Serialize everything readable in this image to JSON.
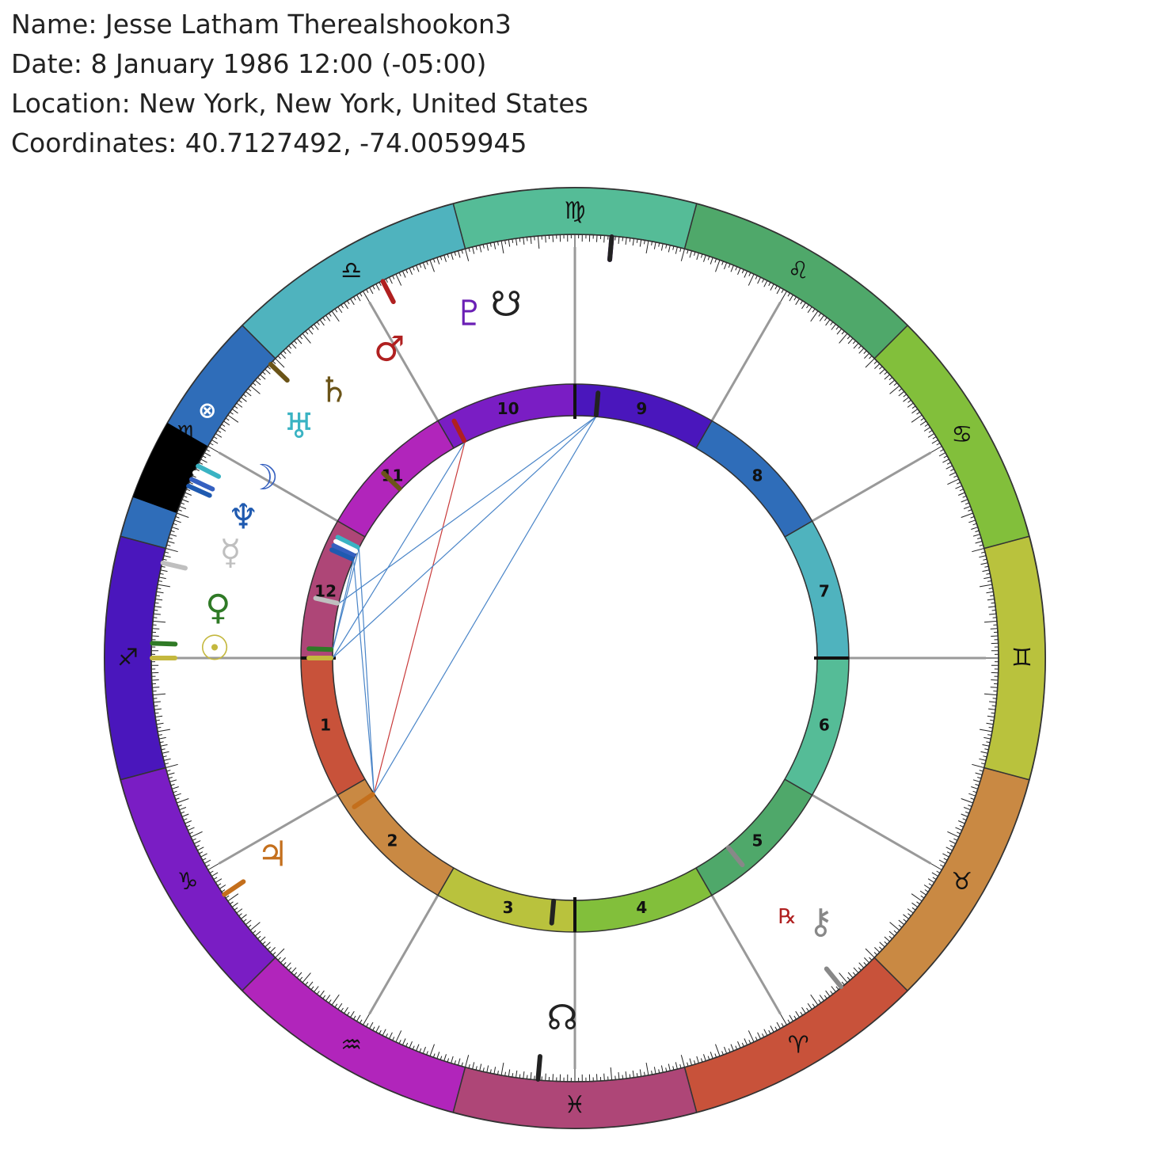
{
  "header": {
    "name": "Name: Jesse Latham Therealshookon3",
    "date": "Date: 8 January 1986 12:00 (-05:00)",
    "location": "Location: New York, New York, United States",
    "coordinates": "Coordinates: 40.7127492, -74.0059945"
  },
  "zodiac": {
    "ascendant_longitude": 255.0,
    "signs": [
      {
        "name": "aries",
        "glyph": "♈",
        "start": 0,
        "color": "#c8523a"
      },
      {
        "name": "taurus",
        "glyph": "♉",
        "start": 30,
        "color": "#c98943"
      },
      {
        "name": "gemini",
        "glyph": "♊",
        "start": 60,
        "color": "#b9c23d"
      },
      {
        "name": "cancer",
        "glyph": "♋",
        "start": 90,
        "color": "#82bf3b"
      },
      {
        "name": "leo",
        "glyph": "♌",
        "start": 120,
        "color": "#4fa86a"
      },
      {
        "name": "virgo",
        "glyph": "♍",
        "start": 150,
        "color": "#55bc97"
      },
      {
        "name": "libra",
        "glyph": "♎",
        "start": 180,
        "color": "#4fb3be"
      },
      {
        "name": "scorpio",
        "glyph": "♏",
        "start": 210,
        "color": "#2f6db9"
      },
      {
        "name": "sagittarius",
        "glyph": "♐",
        "start": 240,
        "color": "#4a16bc"
      },
      {
        "name": "capricorn",
        "glyph": "♑",
        "start": 270,
        "color": "#7a1dc4"
      },
      {
        "name": "aquarius",
        "glyph": "♒",
        "start": 300,
        "color": "#b125bb"
      },
      {
        "name": "pisces",
        "glyph": "♓",
        "start": 330,
        "color": "#ae4677"
      }
    ],
    "black_segment": {
      "start": 225,
      "end": 235,
      "color": "#000000"
    }
  },
  "houses": [
    {
      "number": "1",
      "cusp": 255,
      "color": "#c8523a"
    },
    {
      "number": "2",
      "cusp": 285,
      "color": "#c98943"
    },
    {
      "number": "3",
      "cusp": 315,
      "color": "#b9c23d"
    },
    {
      "number": "4",
      "cusp": 345,
      "color": "#82bf3b"
    },
    {
      "number": "5",
      "cusp": 15,
      "color": "#4fa86a"
    },
    {
      "number": "6",
      "cusp": 45,
      "color": "#55bc97"
    },
    {
      "number": "7",
      "cusp": 75,
      "color": "#4fb3be"
    },
    {
      "number": "8",
      "cusp": 105,
      "color": "#2f6db9"
    },
    {
      "number": "9",
      "cusp": 135,
      "color": "#4a16bc"
    },
    {
      "number": "10",
      "cusp": 165,
      "color": "#7a1dc4"
    },
    {
      "number": "11",
      "cusp": 195,
      "color": "#b125bb"
    },
    {
      "number": "12",
      "cusp": 225,
      "color": "#ae4677"
    }
  ],
  "planets": [
    {
      "name": "sun",
      "glyph": "☉",
      "longitude": 255.0,
      "glyph_longitude": 253.5,
      "color": "#c4b83e"
    },
    {
      "name": "moon",
      "glyph": "☽",
      "longitude": 230.0,
      "glyph_longitude": 225.0,
      "color": "#3560c0"
    },
    {
      "name": "mercury",
      "glyph": "☿",
      "longitude": 242.0,
      "glyph_longitude": 238.0,
      "color": "#bfbfbf"
    },
    {
      "name": "venus",
      "glyph": "♀",
      "longitude": 253.0,
      "glyph_longitude": 247.0,
      "color": "#2f7a26"
    },
    {
      "name": "mars",
      "glyph": "♂",
      "longitude": 192.0,
      "glyph_longitude": 196.0,
      "color": "#b02020"
    },
    {
      "name": "jupiter",
      "glyph": "♃",
      "longitude": 289.0,
      "glyph_longitude": 288.0,
      "color": "#c46f1c"
    },
    {
      "name": "saturn",
      "glyph": "♄",
      "longitude": 211.0,
      "glyph_longitude": 207.0,
      "color": "#6b5418"
    },
    {
      "name": "uranus",
      "glyph": "♅",
      "longitude": 228.0,
      "glyph_longitude": 215.0,
      "color": "#3ab3c3"
    },
    {
      "name": "neptune",
      "glyph": "♆",
      "longitude": 231.0,
      "glyph_longitude": 232.0,
      "color": "#1f5ab0"
    },
    {
      "name": "pluto",
      "glyph": "♇",
      "longitude": 160.0,
      "glyph_longitude": 182.0,
      "color": "#6a1fb5"
    },
    {
      "name": "true-node",
      "glyph": "☊",
      "longitude": 340.0,
      "glyph_longitude": 343.0,
      "color": "#222222"
    },
    {
      "name": "south-node",
      "glyph": "☋",
      "longitude": 160.0,
      "glyph_longitude": 176.0,
      "color": "#222222"
    },
    {
      "name": "chiron",
      "glyph": "⚷",
      "longitude": 24.0,
      "glyph_longitude": 28.0,
      "color": "#888888"
    },
    {
      "name": "fortune",
      "glyph": "⊗",
      "longitude": 229.0,
      "glyph_longitude": 221.0,
      "color": "#ffffff"
    }
  ],
  "retrograde": {
    "label": "℞",
    "planet": "chiron",
    "color": "#b02020"
  },
  "aspects": [
    {
      "from": "jupiter",
      "to": "mars",
      "color": "#c83a3a"
    },
    {
      "from": "jupiter",
      "to": "pluto",
      "color": "#4a85c8"
    },
    {
      "from": "jupiter",
      "to": "uranus",
      "color": "#4a85c8"
    },
    {
      "from": "jupiter",
      "to": "neptune",
      "color": "#4a85c8"
    },
    {
      "from": "sun",
      "to": "pluto",
      "color": "#4a85c8"
    },
    {
      "from": "sun",
      "to": "mars",
      "color": "#4a85c8"
    },
    {
      "from": "venus",
      "to": "uranus",
      "color": "#4a85c8"
    },
    {
      "from": "mercury",
      "to": "pluto",
      "color": "#4a85c8"
    },
    {
      "from": "venus",
      "to": "neptune",
      "color": "#4a85c8"
    }
  ]
}
